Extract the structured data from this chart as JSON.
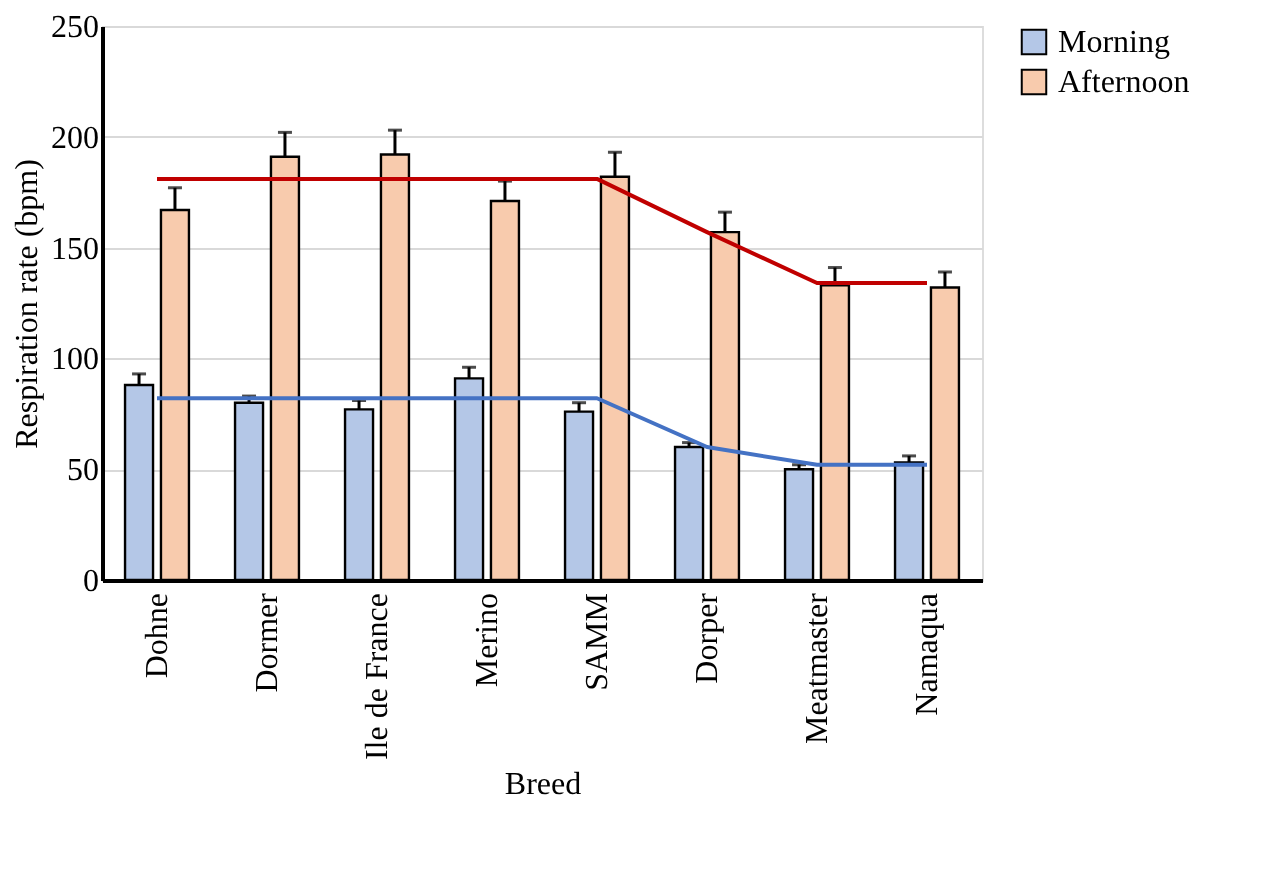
{
  "chart_data": {
    "type": "bar",
    "xlabel": "Breed",
    "ylabel": "Respiration rate (bpm)",
    "categories": [
      "Dohne",
      "Dormer",
      "Ile de France",
      "Merino",
      "SAMM",
      "Dorper",
      "Meatmaster",
      "Namaqua"
    ],
    "series": [
      {
        "name": "Morning",
        "color": "#b4c7e7",
        "values": [
          88,
          80,
          77,
          91,
          76,
          60,
          50,
          53
        ],
        "errors": [
          [
            88,
            93
          ],
          [
            80,
            83
          ],
          [
            77,
            81
          ],
          [
            91,
            96
          ],
          [
            76,
            80
          ],
          [
            60,
            62
          ],
          [
            50,
            52
          ],
          [
            53,
            56
          ]
        ]
      },
      {
        "name": "Afternoon",
        "color": "#f8cbad",
        "values": [
          167,
          191,
          192,
          171,
          182,
          157,
          133,
          132
        ],
        "errors": [
          [
            167,
            177
          ],
          [
            191,
            202
          ],
          [
            192,
            203
          ],
          [
            171,
            180
          ],
          [
            182,
            193
          ],
          [
            157,
            166
          ],
          [
            133,
            141
          ],
          [
            132,
            139
          ]
        ]
      },
      {
        "type": "line",
        "color": "#c00000",
        "values": [
          181,
          181,
          181,
          181,
          181,
          157,
          134,
          134
        ]
      },
      {
        "type": "line",
        "color": "#4472c4",
        "values": [
          82,
          82,
          82,
          82,
          82,
          60,
          52,
          52
        ]
      }
    ],
    "ylim": [
      0,
      250
    ],
    "yticks": [
      0,
      50,
      100,
      150,
      200,
      250
    ],
    "grid": "y",
    "legend": "right"
  }
}
